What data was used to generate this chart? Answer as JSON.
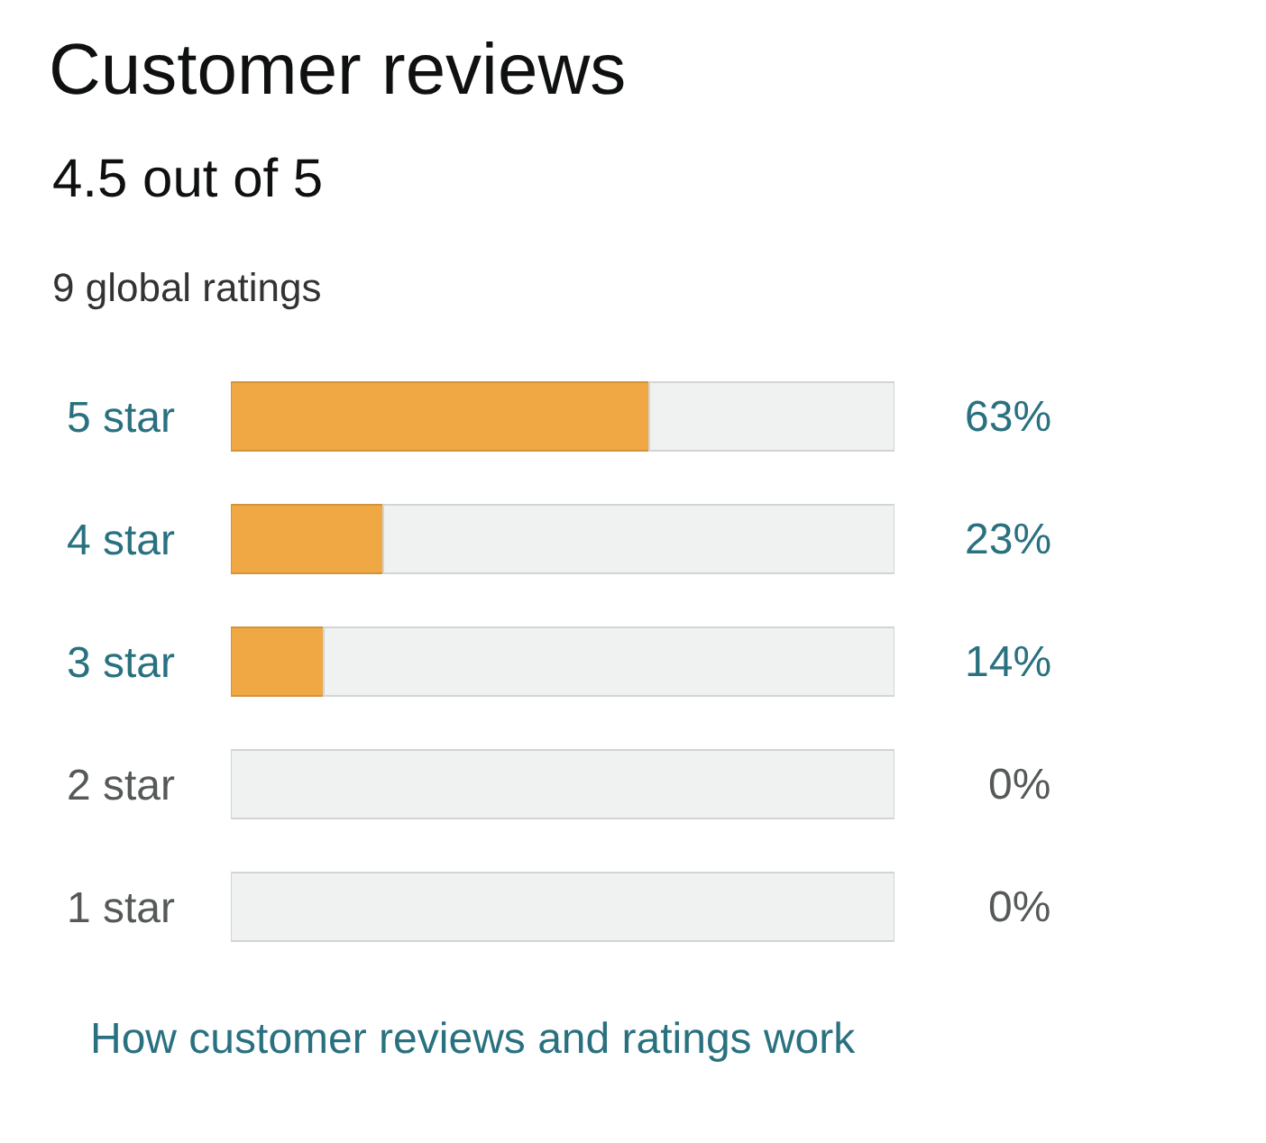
{
  "chart_data": {
    "type": "bar",
    "orientation": "horizontal",
    "stacked": true,
    "title": "Customer reviews",
    "subtitle": "4.5 out of 5",
    "categories": [
      "5 star",
      "4 star",
      "3 star",
      "2 star",
      "1 star"
    ],
    "series": [
      {
        "color": "#f0a844",
        "values": [
          63,
          23,
          14,
          0,
          0
        ],
        "value_labels": [
          "63%",
          "23%",
          "14%",
          "0%",
          "0%"
        ]
      },
      {
        "color": "#f0f2f2",
        "values": [
          37,
          77,
          86,
          100,
          100
        ]
      }
    ],
    "xlim": [
      0,
      100
    ],
    "tick_labels": "y",
    "annotations": [
      "9 global ratings",
      "How customer reviews and ratings work"
    ]
  }
}
